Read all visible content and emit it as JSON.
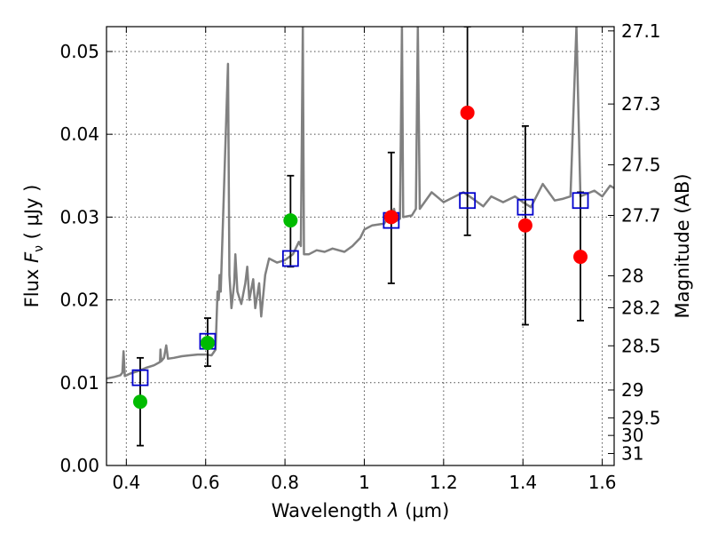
{
  "chart_data": {
    "type": "scatter",
    "xlabel": {
      "prefix": "Wavelength  ",
      "symbol": "λ",
      "unit": " (μm)"
    },
    "ylabel": {
      "prefix": "Flux  ",
      "symbol": "F",
      "subscript": "ν",
      "unit": "  ( μJy )"
    },
    "y2label": "Magnitude (AB)",
    "xlim": [
      0.35,
      1.63
    ],
    "ylim": [
      0.0,
      0.053
    ],
    "grid": true,
    "x_ticks": [
      {
        "value": 0.4,
        "label": "0.4"
      },
      {
        "value": 0.6,
        "label": "0.6"
      },
      {
        "value": 0.8,
        "label": "0.8"
      },
      {
        "value": 1.0,
        "label": "1"
      },
      {
        "value": 1.2,
        "label": "1.2"
      },
      {
        "value": 1.4,
        "label": "1.4"
      },
      {
        "value": 1.6,
        "label": "1.6"
      }
    ],
    "y_ticks": [
      {
        "value": 0.0,
        "label": "0.00"
      },
      {
        "value": 0.01,
        "label": "0.01"
      },
      {
        "value": 0.02,
        "label": "0.02"
      },
      {
        "value": 0.03,
        "label": "0.03"
      },
      {
        "value": 0.04,
        "label": "0.04"
      },
      {
        "value": 0.05,
        "label": "0.05"
      }
    ],
    "y2_ticks": [
      {
        "value": 27.1,
        "label": "27.1"
      },
      {
        "value": 27.3,
        "label": "27.3"
      },
      {
        "value": 27.5,
        "label": "27.5"
      },
      {
        "value": 27.7,
        "label": "27.7"
      },
      {
        "value": 28.0,
        "label": "28"
      },
      {
        "value": 28.2,
        "label": "28.2"
      },
      {
        "value": 28.5,
        "label": "28.5"
      },
      {
        "value": 29.0,
        "label": "29"
      },
      {
        "value": 29.5,
        "label": "29.5"
      },
      {
        "value": 30.0,
        "label": "30"
      },
      {
        "value": 31.0,
        "label": "31"
      }
    ],
    "colors": {
      "spectrum": "#808080",
      "observed_optical": "#00bb00",
      "observed_nir": "#ff0000",
      "model_squares": "#0000cc",
      "errorbars": "#000000"
    },
    "spectrum": [
      [
        0.35,
        0.0105
      ],
      [
        0.37,
        0.0107
      ],
      [
        0.385,
        0.0109
      ],
      [
        0.39,
        0.0112
      ],
      [
        0.393,
        0.0138
      ],
      [
        0.396,
        0.0108
      ],
      [
        0.41,
        0.0111
      ],
      [
        0.43,
        0.0114
      ],
      [
        0.45,
        0.0118
      ],
      [
        0.47,
        0.0121
      ],
      [
        0.485,
        0.0125
      ],
      [
        0.4861,
        0.014
      ],
      [
        0.488,
        0.0126
      ],
      [
        0.495,
        0.013
      ],
      [
        0.5007,
        0.0145
      ],
      [
        0.505,
        0.0129
      ],
      [
        0.52,
        0.013
      ],
      [
        0.54,
        0.0132
      ],
      [
        0.56,
        0.0133
      ],
      [
        0.58,
        0.0134
      ],
      [
        0.6,
        0.0134
      ],
      [
        0.615,
        0.0133
      ],
      [
        0.625,
        0.014
      ],
      [
        0.63,
        0.021
      ],
      [
        0.633,
        0.02
      ],
      [
        0.635,
        0.023
      ],
      [
        0.638,
        0.021
      ],
      [
        0.64,
        0.024
      ],
      [
        0.6563,
        0.0485
      ],
      [
        0.66,
        0.023
      ],
      [
        0.665,
        0.019
      ],
      [
        0.672,
        0.022
      ],
      [
        0.675,
        0.0255
      ],
      [
        0.68,
        0.021
      ],
      [
        0.69,
        0.0195
      ],
      [
        0.7,
        0.022
      ],
      [
        0.705,
        0.024
      ],
      [
        0.71,
        0.02
      ],
      [
        0.72,
        0.0225
      ],
      [
        0.725,
        0.019
      ],
      [
        0.735,
        0.022
      ],
      [
        0.74,
        0.018
      ],
      [
        0.75,
        0.023
      ],
      [
        0.76,
        0.025
      ],
      [
        0.78,
        0.0245
      ],
      [
        0.8,
        0.0248
      ],
      [
        0.82,
        0.0255
      ],
      [
        0.835,
        0.027
      ],
      [
        0.84,
        0.0265
      ],
      [
        0.845,
        0.053
      ],
      [
        0.848,
        0.0255
      ],
      [
        0.86,
        0.0255
      ],
      [
        0.88,
        0.026
      ],
      [
        0.9,
        0.0258
      ],
      [
        0.92,
        0.0262
      ],
      [
        0.95,
        0.0258
      ],
      [
        0.97,
        0.0265
      ],
      [
        0.99,
        0.0275
      ],
      [
        1.0,
        0.0285
      ],
      [
        1.02,
        0.029
      ],
      [
        1.05,
        0.0292
      ],
      [
        1.075,
        0.031
      ],
      [
        1.08,
        0.0295
      ],
      [
        1.09,
        0.0298
      ],
      [
        1.095,
        0.053
      ],
      [
        1.098,
        0.03
      ],
      [
        1.12,
        0.0302
      ],
      [
        1.13,
        0.031
      ],
      [
        1.135,
        0.053
      ],
      [
        1.14,
        0.031
      ],
      [
        1.17,
        0.033
      ],
      [
        1.2,
        0.0318
      ],
      [
        1.25,
        0.033
      ],
      [
        1.28,
        0.032
      ],
      [
        1.3,
        0.0313
      ],
      [
        1.32,
        0.0325
      ],
      [
        1.35,
        0.0318
      ],
      [
        1.38,
        0.0325
      ],
      [
        1.4,
        0.0318
      ],
      [
        1.42,
        0.0312
      ],
      [
        1.45,
        0.034
      ],
      [
        1.48,
        0.032
      ],
      [
        1.5,
        0.0322
      ],
      [
        1.52,
        0.0325
      ],
      [
        1.535,
        0.053
      ],
      [
        1.545,
        0.0325
      ],
      [
        1.58,
        0.0332
      ],
      [
        1.6,
        0.0325
      ],
      [
        1.62,
        0.0338
      ],
      [
        1.63,
        0.0335
      ]
    ],
    "observed": [
      {
        "x": 0.435,
        "y": 0.0077,
        "yerr_low": 0.0024,
        "yerr_high": 0.013,
        "band": "optical"
      },
      {
        "x": 0.605,
        "y": 0.0148,
        "yerr_low": 0.012,
        "yerr_high": 0.0178,
        "band": "optical"
      },
      {
        "x": 0.814,
        "y": 0.0296,
        "yerr_low": 0.024,
        "yerr_high": 0.035,
        "band": "optical"
      },
      {
        "x": 1.068,
        "y": 0.03,
        "yerr_low": 0.022,
        "yerr_high": 0.0378,
        "band": "nir"
      },
      {
        "x": 1.26,
        "y": 0.0426,
        "yerr_low": 0.0278,
        "yerr_high": 0.053,
        "band": "nir"
      },
      {
        "x": 1.406,
        "y": 0.029,
        "yerr_low": 0.017,
        "yerr_high": 0.041,
        "band": "nir"
      },
      {
        "x": 1.545,
        "y": 0.0252,
        "yerr_low": 0.0175,
        "yerr_high": 0.033,
        "band": "nir"
      }
    ],
    "model_squares": [
      {
        "x": 0.435,
        "y": 0.0106
      },
      {
        "x": 0.605,
        "y": 0.015
      },
      {
        "x": 0.814,
        "y": 0.025
      },
      {
        "x": 1.068,
        "y": 0.0296
      },
      {
        "x": 1.26,
        "y": 0.032
      },
      {
        "x": 1.406,
        "y": 0.0312
      },
      {
        "x": 1.545,
        "y": 0.032
      }
    ]
  }
}
